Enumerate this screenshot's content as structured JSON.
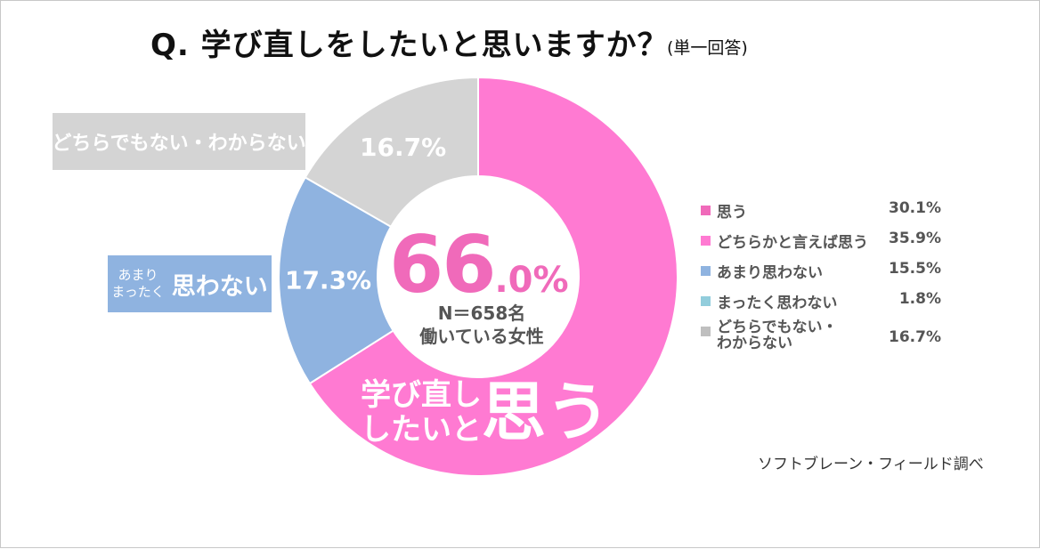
{
  "title": "Q.  学び直しをしたいと思いますか？",
  "title_note": "(単一回答)",
  "chart_data": {
    "type": "donut",
    "ring": [
      {
        "name": "学び直ししたいと思う",
        "value": 66.0,
        "color": "#ff7ad2"
      },
      {
        "name": "思わない",
        "value": 17.3,
        "color": "#8fb3e0"
      },
      {
        "name": "どちらでもない・わからない",
        "value": 16.7,
        "color": "#d4d4d4"
      }
    ],
    "ring_labels": [
      "16.7%",
      "17.3%"
    ],
    "center": {
      "value_int": "66",
      "value_dec": ".0%",
      "sample": "N＝658名",
      "population": "働いている女性"
    },
    "band_label": {
      "line1": "学び直し",
      "line2": "したいと",
      "big": "思う"
    },
    "callouts": {
      "gray": "どちらでもない・わからない",
      "blue_small_1": "あまり",
      "blue_small_2": "まったく",
      "blue_big": "思わない"
    },
    "legend": [
      {
        "name": "思う",
        "value": "30.1%",
        "color": "#f06aba"
      },
      {
        "name": "どちらかと言えば思う",
        "value": "35.9%",
        "color": "#ff7ad2"
      },
      {
        "name": "あまり思わない",
        "value": "15.5%",
        "color": "#8fb3e0"
      },
      {
        "name": "まったく思わない",
        "value": "1.8%",
        "color": "#92cddc"
      },
      {
        "name": "どちらでもない・",
        "name2": "わからない",
        "value": "16.7%",
        "color": "#bfbfbf"
      }
    ]
  },
  "source": "ソフトブレーン・フィールド調べ"
}
